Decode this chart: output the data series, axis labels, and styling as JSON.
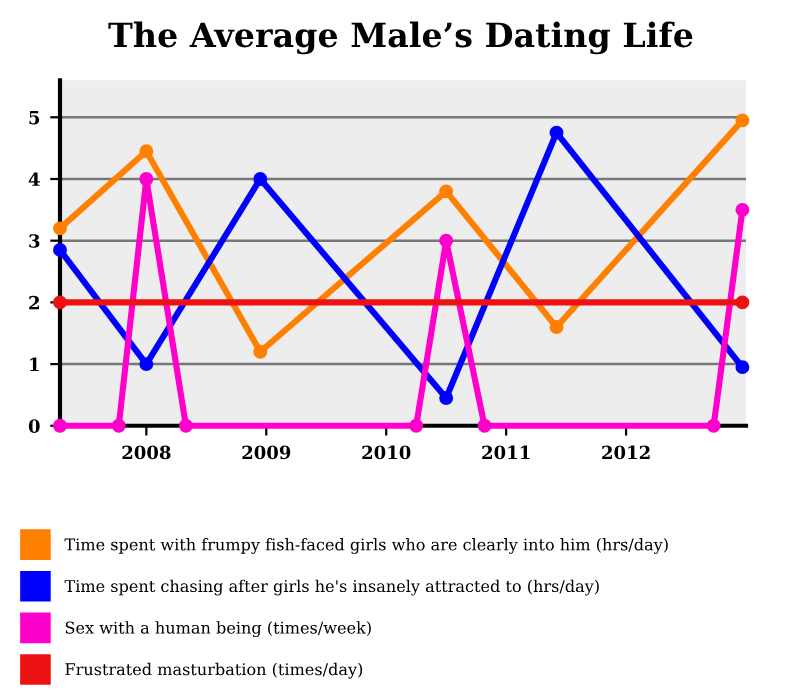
{
  "chart_data": {
    "type": "line",
    "title": "The Average Male’s Dating Life",
    "series": [
      {
        "name": "Time spent with frumpy fish-faced girls who are clearly into him (hrs/day)",
        "color": "#ff8000",
        "x": [
          2007.28,
          2008.0,
          2008.95,
          2010.5,
          2011.42,
          2012.97
        ],
        "values": [
          3.2,
          4.45,
          1.2,
          3.8,
          1.6,
          4.95
        ]
      },
      {
        "name": "Time spent chasing after girls he's insanely attracted to (hrs/day)",
        "color": "#0000ff",
        "x": [
          2007.28,
          2008.0,
          2008.95,
          2010.5,
          2011.42,
          2012.97
        ],
        "values": [
          2.85,
          1.0,
          4.0,
          0.45,
          4.75,
          0.95
        ]
      },
      {
        "name": "Sex with a human being (times/week)",
        "color": "#ff00cc",
        "x": [
          2007.28,
          2007.77,
          2008.0,
          2008.33,
          2010.25,
          2010.5,
          2010.82,
          2012.73,
          2012.97
        ],
        "values": [
          0,
          0,
          4.0,
          0,
          0,
          3.0,
          0,
          0,
          3.5
        ]
      },
      {
        "name": "Frustrated masturbation (times/day)",
        "color": "#ee1111",
        "x": [
          2007.28,
          2012.97
        ],
        "values": [
          2,
          2
        ]
      }
    ],
    "xlim": [
      2007.28,
      2013.0
    ],
    "ylim": [
      0,
      5.6
    ],
    "xticks": [
      2008,
      2009,
      2010,
      2011,
      2012
    ],
    "yticks": [
      0,
      1,
      2,
      3,
      4,
      5
    ],
    "grid": "y",
    "legend": "bottom",
    "marker": "circle",
    "line_style": "solid"
  }
}
